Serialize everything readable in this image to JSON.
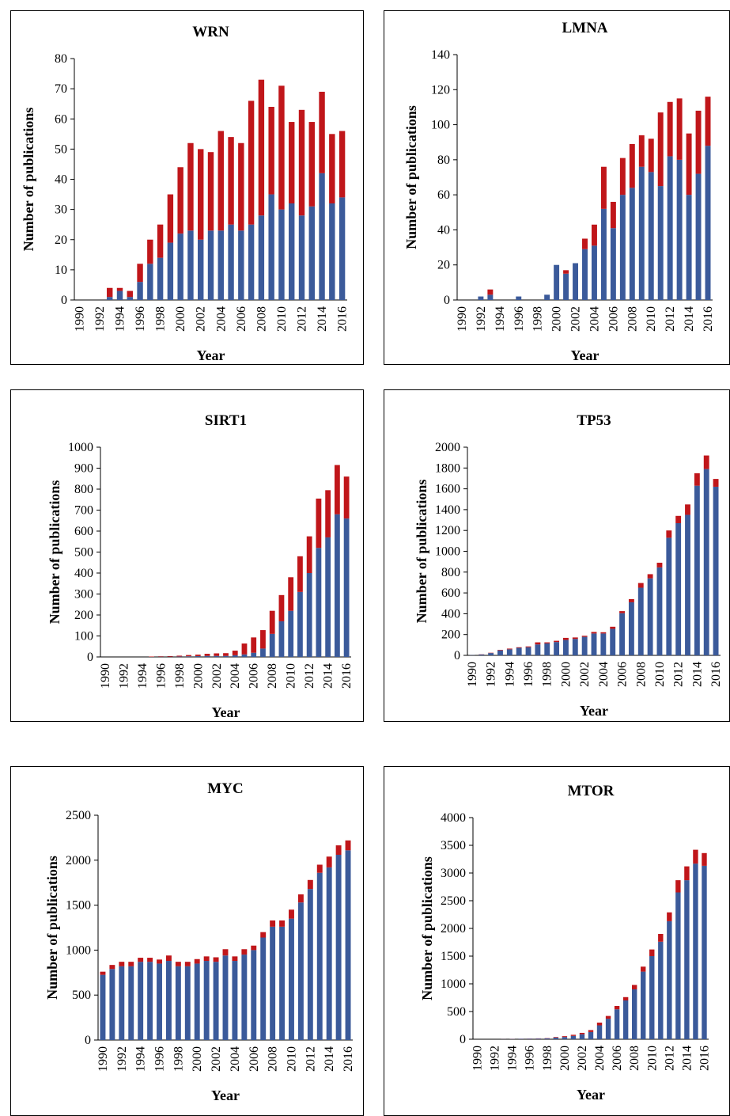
{
  "colors": {
    "base": "#3B5A9A",
    "top": "#C0161A"
  },
  "x_axis_label": "Year",
  "y_axis_label": "Number of publications",
  "year_ticks": [
    "1990",
    "1992",
    "1994",
    "1996",
    "1998",
    "2000",
    "2002",
    "2004",
    "2006",
    "2008",
    "2010",
    "2012",
    "2014",
    "2016"
  ],
  "chart_data": [
    {
      "type": "bar",
      "stacked": true,
      "title": "WRN",
      "xlabel": "Year",
      "ylabel": "Number of publications",
      "x": [
        1990,
        1991,
        1992,
        1993,
        1994,
        1995,
        1996,
        1997,
        1998,
        1999,
        2000,
        2001,
        2002,
        2003,
        2004,
        2005,
        2006,
        2007,
        2008,
        2009,
        2010,
        2011,
        2012,
        2013,
        2014,
        2015,
        2016
      ],
      "ylim": [
        0,
        80
      ],
      "yticks": [
        "0",
        "10",
        "20",
        "30",
        "40",
        "50",
        "60",
        "70",
        "80"
      ],
      "series": [
        {
          "values": [
            0,
            0,
            0,
            1,
            3,
            1,
            6,
            12,
            14,
            19,
            22,
            23,
            20,
            23,
            23,
            25,
            23,
            25,
            28,
            35,
            30,
            32,
            28,
            31,
            42,
            32,
            34
          ]
        },
        {
          "values": [
            0,
            0,
            0,
            3,
            1,
            2,
            6,
            8,
            11,
            16,
            22,
            29,
            30,
            26,
            33,
            29,
            29,
            41,
            45,
            29,
            41,
            27,
            35,
            28,
            27,
            23,
            22
          ]
        }
      ]
    },
    {
      "type": "bar",
      "stacked": true,
      "title": "LMNA",
      "xlabel": "Year",
      "ylabel": "Number of publications",
      "x": [
        1990,
        1991,
        1992,
        1993,
        1994,
        1995,
        1996,
        1997,
        1998,
        1999,
        2000,
        2001,
        2002,
        2003,
        2004,
        2005,
        2006,
        2007,
        2008,
        2009,
        2010,
        2011,
        2012,
        2013,
        2014,
        2015,
        2016
      ],
      "ylim": [
        0,
        140
      ],
      "yticks": [
        "0",
        "20",
        "40",
        "60",
        "80",
        "100",
        "120",
        "140"
      ],
      "series": [
        {
          "values": [
            0,
            0,
            2,
            3,
            0,
            0,
            2,
            0,
            0,
            3,
            20,
            15,
            21,
            29,
            31,
            52,
            41,
            60,
            64,
            76,
            73,
            65,
            82,
            80,
            60,
            72,
            88
          ]
        },
        {
          "values": [
            0,
            0,
            0,
            3,
            0,
            0,
            0,
            0,
            0,
            0,
            0,
            2,
            0,
            6,
            12,
            24,
            15,
            21,
            25,
            18,
            19,
            42,
            31,
            35,
            35,
            36,
            28
          ]
        }
      ]
    },
    {
      "type": "bar",
      "stacked": true,
      "title": "SIRT1",
      "xlabel": "Year",
      "ylabel": "Number of publications",
      "x": [
        1990,
        1991,
        1992,
        1993,
        1994,
        1995,
        1996,
        1997,
        1998,
        1999,
        2000,
        2001,
        2002,
        2003,
        2004,
        2005,
        2006,
        2007,
        2008,
        2009,
        2010,
        2011,
        2012,
        2013,
        2014,
        2015,
        2016
      ],
      "ylim": [
        0,
        1000
      ],
      "yticks": [
        "0",
        "100",
        "200",
        "300",
        "400",
        "500",
        "600",
        "700",
        "800",
        "900",
        "1000"
      ],
      "series": [
        {
          "values": [
            0,
            0,
            0,
            0,
            0,
            0,
            1,
            1,
            2,
            3,
            4,
            5,
            5,
            5,
            8,
            12,
            20,
            40,
            110,
            170,
            220,
            310,
            400,
            520,
            570,
            680,
            660
          ]
        },
        {
          "values": [
            0,
            0,
            0,
            0,
            0,
            2,
            2,
            3,
            4,
            6,
            7,
            10,
            12,
            13,
            22,
            52,
            73,
            88,
            110,
            125,
            160,
            170,
            175,
            235,
            225,
            235,
            200
          ]
        }
      ]
    },
    {
      "type": "bar",
      "stacked": true,
      "title": "TP53",
      "xlabel": "Year",
      "ylabel": "Number of publications",
      "x": [
        1990,
        1991,
        1992,
        1993,
        1994,
        1995,
        1996,
        1997,
        1998,
        1999,
        2000,
        2001,
        2002,
        2003,
        2004,
        2005,
        2006,
        2007,
        2008,
        2009,
        2010,
        2011,
        2012,
        2013,
        2014,
        2015,
        2016
      ],
      "ylim": [
        0,
        2000
      ],
      "yticks": [
        "0",
        "200",
        "400",
        "600",
        "800",
        "1000",
        "1200",
        "1400",
        "1600",
        "1800",
        "2000"
      ],
      "series": [
        {
          "values": [
            2,
            8,
            22,
            48,
            58,
            72,
            78,
            105,
            115,
            128,
            148,
            158,
            178,
            210,
            210,
            255,
            405,
            510,
            650,
            740,
            845,
            1130,
            1270,
            1350,
            1630,
            1790,
            1620
          ]
        },
        {
          "values": [
            0,
            2,
            3,
            5,
            7,
            6,
            8,
            20,
            10,
            12,
            20,
            14,
            10,
            15,
            12,
            20,
            20,
            30,
            45,
            40,
            45,
            70,
            70,
            100,
            120,
            130,
            75
          ]
        }
      ]
    },
    {
      "type": "bar",
      "stacked": true,
      "title": "MYC",
      "xlabel": "Year",
      "ylabel": "Number of publications",
      "x": [
        1990,
        1991,
        1992,
        1993,
        1994,
        1995,
        1996,
        1997,
        1998,
        1999,
        2000,
        2001,
        2002,
        2003,
        2004,
        2005,
        2006,
        2007,
        2008,
        2009,
        2010,
        2011,
        2012,
        2013,
        2014,
        2015,
        2016
      ],
      "ylim": [
        0,
        2500
      ],
      "yticks": [
        "0",
        "500",
        "1000",
        "1500",
        "2000",
        "2500"
      ],
      "series": [
        {
          "values": [
            725,
            790,
            820,
            820,
            870,
            870,
            850,
            880,
            820,
            820,
            850,
            880,
            870,
            940,
            880,
            950,
            1000,
            1140,
            1260,
            1260,
            1350,
            1530,
            1680,
            1860,
            1920,
            2060,
            2110
          ]
        },
        {
          "values": [
            35,
            45,
            50,
            50,
            45,
            45,
            45,
            60,
            50,
            50,
            50,
            50,
            50,
            70,
            50,
            60,
            50,
            60,
            70,
            70,
            100,
            90,
            100,
            90,
            120,
            105,
            110
          ]
        }
      ]
    },
    {
      "type": "bar",
      "stacked": true,
      "title": "MTOR",
      "xlabel": "Year",
      "ylabel": "Number of publications",
      "x": [
        1990,
        1991,
        1992,
        1993,
        1994,
        1995,
        1996,
        1997,
        1998,
        1999,
        2000,
        2001,
        2002,
        2003,
        2004,
        2005,
        2006,
        2007,
        2008,
        2009,
        2010,
        2011,
        2012,
        2013,
        2014,
        2015,
        2016
      ],
      "ylim": [
        0,
        4000
      ],
      "yticks": [
        "0",
        "500",
        "1000",
        "1500",
        "2000",
        "2500",
        "3000",
        "3500",
        "4000"
      ],
      "series": [
        {
          "values": [
            0,
            0,
            0,
            2,
            5,
            8,
            10,
            12,
            15,
            30,
            40,
            60,
            90,
            130,
            250,
            370,
            540,
            700,
            900,
            1220,
            1500,
            1760,
            2130,
            2650,
            2870,
            3170,
            3130
          ]
        },
        {
          "values": [
            0,
            0,
            0,
            1,
            2,
            2,
            3,
            4,
            5,
            10,
            15,
            20,
            25,
            35,
            50,
            50,
            60,
            60,
            80,
            90,
            120,
            140,
            160,
            220,
            250,
            250,
            230
          ]
        }
      ]
    }
  ]
}
